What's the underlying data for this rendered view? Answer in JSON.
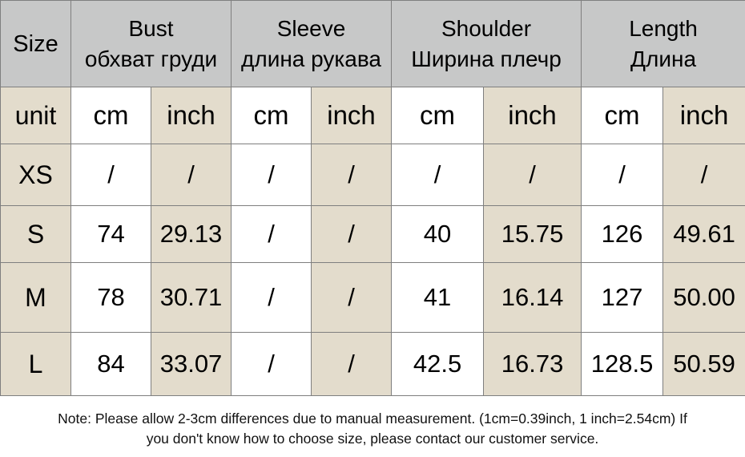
{
  "headers": {
    "size": "Size",
    "bust_en": "Bust",
    "bust_ru": "обхват груди",
    "sleeve_en": "Sleeve",
    "sleeve_ru": "длина рукава",
    "shoulder_en": "Shoulder",
    "shoulder_ru": "Ширина плечр",
    "length_en": "Length",
    "length_ru": "Длина"
  },
  "unit_row": {
    "label": "unit",
    "units": [
      "cm",
      "inch",
      "cm",
      "inch",
      "cm",
      "inch",
      "cm",
      "inch"
    ]
  },
  "rows": [
    {
      "size": "XS",
      "values": [
        "/",
        "/",
        "/",
        "/",
        "/",
        "/",
        "/",
        "/"
      ]
    },
    {
      "size": "S",
      "values": [
        "74",
        "29.13",
        "/",
        "/",
        "40",
        "15.75",
        "126",
        "49.61"
      ]
    },
    {
      "size": "M",
      "values": [
        "78",
        "30.71",
        "/",
        "/",
        "41",
        "16.14",
        "127",
        "50.00"
      ]
    },
    {
      "size": "L",
      "values": [
        "84",
        "33.07",
        "/",
        "/",
        "42.5",
        "16.73",
        "128.5",
        "50.59"
      ]
    }
  ],
  "note": {
    "line1": "Note: Please allow 2-3cm differences due to manual measurement. (1cm=0.39inch, 1 inch=2.54cm)  If",
    "line2": "you don't know how to choose size, please contact our customer service."
  },
  "colors": {
    "header_bg": "#c7c8c8",
    "beige": "#e3dccc",
    "border": "#7f7f7f"
  }
}
